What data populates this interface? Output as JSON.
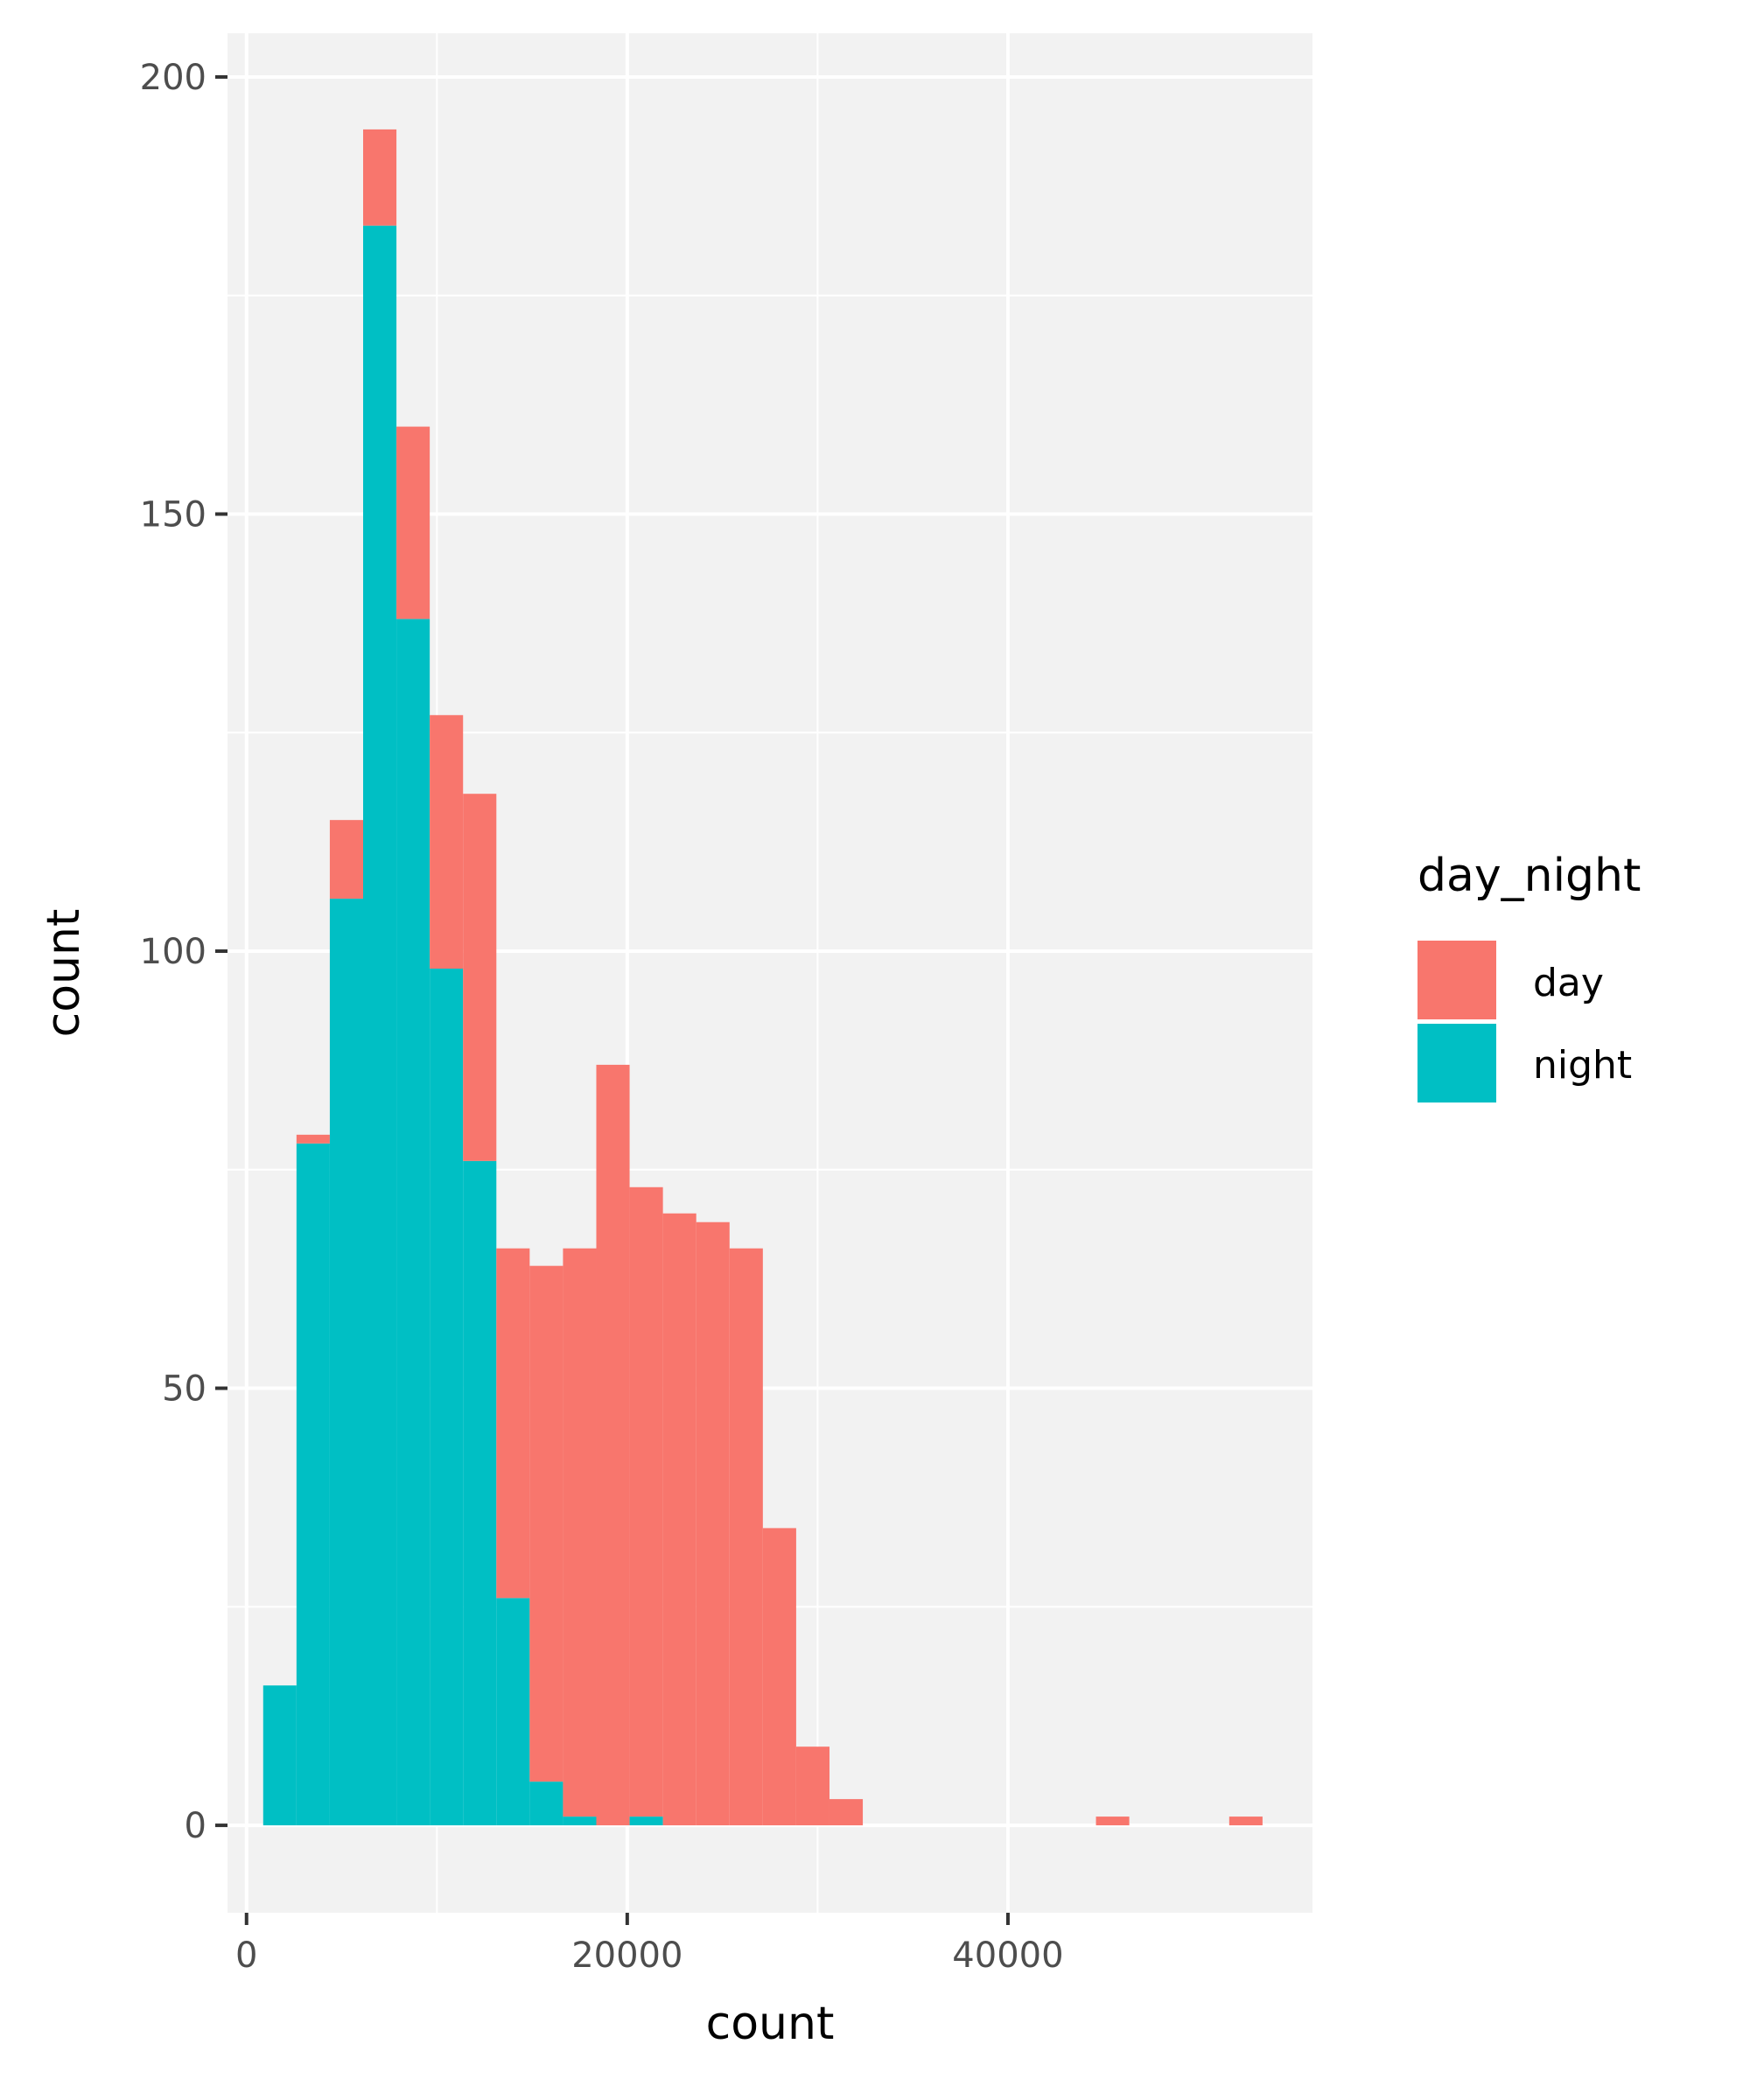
{
  "chart_data": {
    "type": "bar",
    "stacked": true,
    "xlabel": "count",
    "ylabel": "count",
    "xlim": [
      -1000,
      56000
    ],
    "ylim": [
      -10,
      205
    ],
    "x_ticks": [
      0,
      20000,
      40000
    ],
    "x_tick_labels": [
      "0",
      "20000",
      "40000"
    ],
    "y_ticks": [
      0,
      50,
      100,
      150,
      200
    ],
    "y_tick_labels": [
      "0",
      "50",
      "100",
      "150",
      "200"
    ],
    "grid": true,
    "bin_width": 1750,
    "bin_starts": [
      875,
      2625,
      4375,
      6125,
      7875,
      9625,
      11375,
      13125,
      14875,
      16625,
      18375,
      20125,
      21875,
      23625,
      25375,
      27125,
      28875,
      30625,
      32375,
      34125,
      35875,
      37625,
      39375,
      41125,
      42875,
      44625,
      46375,
      48125,
      49875,
      51625
    ],
    "series": [
      {
        "name": "night",
        "color": "#00BFC4",
        "values": [
          16,
          78,
          106,
          183,
          138,
          98,
          76,
          26,
          5,
          1,
          0,
          1,
          0,
          0,
          0,
          0,
          0,
          0,
          0,
          0,
          0,
          0,
          0,
          0,
          0,
          0,
          0,
          0,
          0,
          0
        ]
      },
      {
        "name": "day",
        "color": "#F8766D",
        "values": [
          0,
          1,
          9,
          11,
          22,
          29,
          42,
          40,
          59,
          65,
          87,
          72,
          70,
          69,
          66,
          34,
          9,
          3,
          0,
          0,
          0,
          0,
          0,
          0,
          0,
          1,
          0,
          0,
          0,
          1
        ]
      }
    ],
    "legend": {
      "title": "day_night",
      "position": "right",
      "entries": [
        {
          "label": "day",
          "color": "#F8766D"
        },
        {
          "label": "night",
          "color": "#00BFC4"
        }
      ]
    }
  }
}
